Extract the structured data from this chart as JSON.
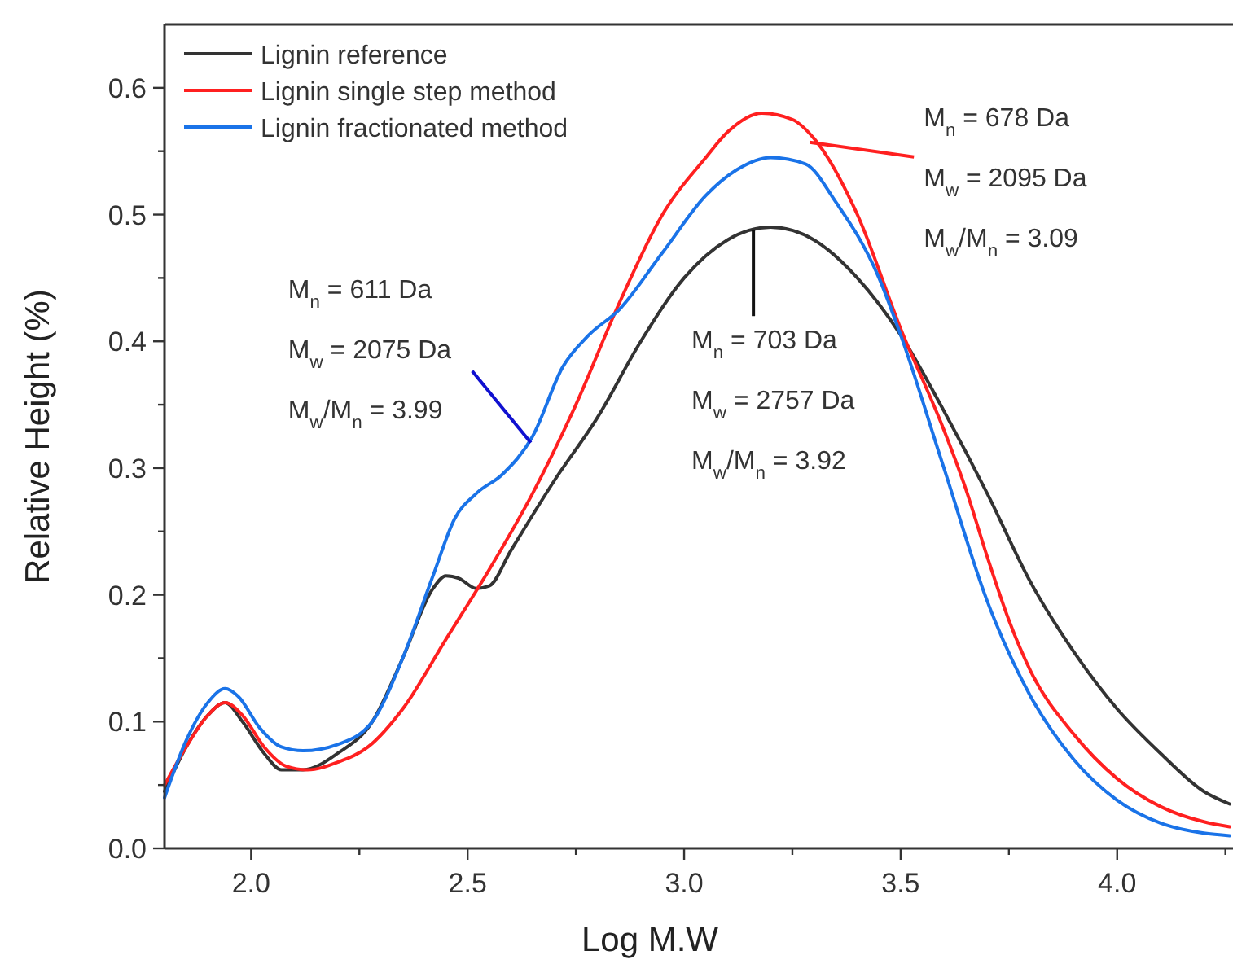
{
  "chart_data": {
    "type": "line",
    "xlabel": "Log M.W",
    "ylabel": "Relative Height (%)",
    "xlim": [
      1.8,
      4.26
    ],
    "ylim": [
      0,
      0.65
    ],
    "xticks": [
      {
        "value": 2.0,
        "label": "2.0"
      },
      {
        "value": 2.25,
        "label": null
      },
      {
        "value": 2.5,
        "label": "2.5"
      },
      {
        "value": 2.75,
        "label": null
      },
      {
        "value": 3.0,
        "label": "3.0"
      },
      {
        "value": 3.25,
        "label": null
      },
      {
        "value": 3.5,
        "label": "3.5"
      },
      {
        "value": 3.75,
        "label": null
      },
      {
        "value": 4.0,
        "label": "4.0"
      },
      {
        "value": 4.25,
        "label": null
      }
    ],
    "yticks": [
      {
        "value": 0,
        "label": "0.0"
      },
      {
        "value": 0.05,
        "label": null
      },
      {
        "value": 0.1,
        "label": "0.1"
      },
      {
        "value": 0.15,
        "label": null
      },
      {
        "value": 0.2,
        "label": "0.2"
      },
      {
        "value": 0.25,
        "label": null
      },
      {
        "value": 0.3,
        "label": "0.3"
      },
      {
        "value": 0.35,
        "label": null
      },
      {
        "value": 0.4,
        "label": "0.4"
      },
      {
        "value": 0.45,
        "label": null
      },
      {
        "value": 0.5,
        "label": "0.5"
      },
      {
        "value": 0.55,
        "label": null
      },
      {
        "value": 0.6,
        "label": "0.6"
      }
    ],
    "grid": false,
    "legend": "top left",
    "marker": "none",
    "line_style": "solid",
    "series": [
      {
        "name": "Lignin reference",
        "color": "#333333",
        "x": [
          1.8,
          1.85,
          1.9,
          1.94,
          1.98,
          2.03,
          2.07,
          2.12,
          2.2,
          2.28,
          2.35,
          2.42,
          2.45,
          2.48,
          2.52,
          2.55,
          2.6,
          2.7,
          2.8,
          2.9,
          3.0,
          3.1,
          3.2,
          3.3,
          3.4,
          3.5,
          3.6,
          3.7,
          3.8,
          3.9,
          4.0,
          4.1,
          4.2,
          4.26
        ],
        "values": [
          0.045,
          0.08,
          0.105,
          0.115,
          0.1,
          0.075,
          0.062,
          0.062,
          0.075,
          0.1,
          0.15,
          0.205,
          0.215,
          0.213,
          0.205,
          0.207,
          0.235,
          0.29,
          0.34,
          0.4,
          0.45,
          0.48,
          0.49,
          0.48,
          0.45,
          0.405,
          0.345,
          0.28,
          0.21,
          0.155,
          0.11,
          0.075,
          0.045,
          0.035
        ]
      },
      {
        "name": "Lignin single step method",
        "color": "#ff2020",
        "x": [
          1.8,
          1.85,
          1.9,
          1.94,
          1.98,
          2.03,
          2.08,
          2.13,
          2.2,
          2.27,
          2.35,
          2.45,
          2.55,
          2.65,
          2.75,
          2.85,
          2.95,
          3.05,
          3.1,
          3.18,
          3.25,
          3.3,
          3.4,
          3.5,
          3.6,
          3.65,
          3.7,
          3.75,
          3.8,
          3.9,
          4.0,
          4.1,
          4.2,
          4.26
        ],
        "values": [
          0.05,
          0.08,
          0.105,
          0.115,
          0.105,
          0.08,
          0.065,
          0.062,
          0.068,
          0.08,
          0.11,
          0.165,
          0.22,
          0.28,
          0.35,
          0.43,
          0.5,
          0.545,
          0.565,
          0.58,
          0.575,
          0.56,
          0.5,
          0.41,
          0.33,
          0.284,
          0.23,
          0.18,
          0.14,
          0.09,
          0.055,
          0.033,
          0.021,
          0.017
        ]
      },
      {
        "name": "Lignin fractionated method",
        "color": "#1a73e8",
        "x": [
          1.8,
          1.85,
          1.9,
          1.94,
          1.97,
          2.02,
          2.07,
          2.12,
          2.2,
          2.28,
          2.35,
          2.42,
          2.47,
          2.52,
          2.58,
          2.65,
          2.72,
          2.78,
          2.85,
          2.95,
          3.05,
          3.12,
          3.2,
          3.28,
          3.35,
          3.45,
          3.5,
          3.6,
          3.7,
          3.8,
          3.9,
          4.0,
          4.1,
          4.2,
          4.26
        ],
        "values": [
          0.04,
          0.085,
          0.115,
          0.126,
          0.12,
          0.095,
          0.08,
          0.077,
          0.082,
          0.1,
          0.15,
          0.215,
          0.26,
          0.28,
          0.295,
          0.325,
          0.38,
          0.405,
          0.425,
          0.47,
          0.515,
          0.535,
          0.545,
          0.54,
          0.51,
          0.45,
          0.405,
          0.3,
          0.195,
          0.12,
          0.07,
          0.038,
          0.02,
          0.012,
          0.01
        ]
      }
    ],
    "annotations": [
      "M$_{n}$ = 611 Da",
      {
        "text": "M$_{w}$ = 2075 Da",
        "x": 2.646,
        "y": 0.32
      },
      "M$_{w}$/M$_{n}$ = 3.99",
      "M$_{n}$ = 678 Da",
      {
        "text": "M$_{w}$ = 2095 Da",
        "x": 3.29,
        "y": 0.557
      },
      "M$_{w}$/M$_{n}$ = 3.09",
      {
        "text": "M$_{n}$ = 703 Da",
        "x": 3.16,
        "y": 0.488
      },
      "M$_{w}$ = 2757 Da",
      "M$_{w}$/M$_{n}$ = 3.92"
    ]
  }
}
